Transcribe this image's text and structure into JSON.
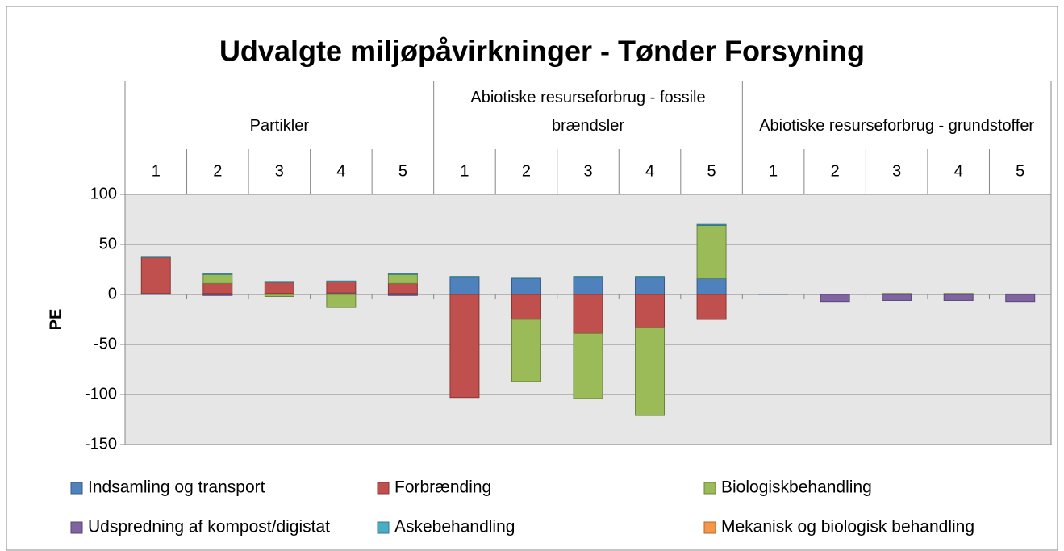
{
  "chart_data": {
    "type": "stacked_bar",
    "title": "Udvalgte miljøpåvirkninger - Tønder Forsyning",
    "ylabel": "PE",
    "groups": [
      {
        "name": "Partikler",
        "categories": [
          "1",
          "2",
          "3",
          "4",
          "5"
        ]
      },
      {
        "name": "Abiotiske resurseforbrug - fossile brændsler",
        "categories": [
          "1",
          "2",
          "3",
          "4",
          "5"
        ]
      },
      {
        "name": "Abiotiske resurseforbrug - grundstoffer",
        "categories": [
          "1",
          "2",
          "3",
          "4",
          "5"
        ]
      }
    ],
    "series": [
      {
        "name": "Indsamling og transport",
        "color": "#4f81bd",
        "values": [
          1,
          1,
          1,
          1.5,
          1,
          17,
          16,
          17,
          17,
          16,
          0.3,
          0,
          0,
          0,
          0
        ]
      },
      {
        "name": "Forbrænding",
        "color": "#c0504d",
        "values": [
          36,
          10,
          11,
          11,
          10,
          -103,
          -25,
          -39,
          -33,
          -25,
          0,
          0,
          0,
          0,
          0
        ]
      },
      {
        "name": "Biologiskbehandling",
        "color": "#9bbb59",
        "values": [
          0,
          9,
          -2,
          -13,
          9,
          0,
          -62,
          -65,
          -88,
          53,
          0,
          0,
          1,
          1,
          0.5
        ]
      },
      {
        "name": "Udspredning af kompost/digistat",
        "color": "#8064a2",
        "values": [
          0,
          -1,
          0,
          0,
          -1,
          0,
          0,
          0,
          0,
          0,
          0,
          -7,
          -6,
          -6,
          -7
        ]
      },
      {
        "name": "Askebehandling",
        "color": "#4bacc6",
        "values": [
          1,
          1,
          1,
          1,
          1,
          1,
          1,
          1,
          1,
          1,
          0,
          0,
          0,
          0,
          0
        ]
      },
      {
        "name": "Mekanisk og biologisk behandling",
        "color": "#f79646",
        "values": [
          0,
          0,
          0,
          0,
          0,
          0,
          0,
          0,
          0,
          0,
          0,
          0,
          0,
          0,
          0
        ]
      }
    ],
    "ylim": [
      -150,
      100
    ],
    "yticks": [
      -150,
      -100,
      -50,
      0,
      50,
      100
    ],
    "grid": true,
    "legend": "bottom"
  }
}
